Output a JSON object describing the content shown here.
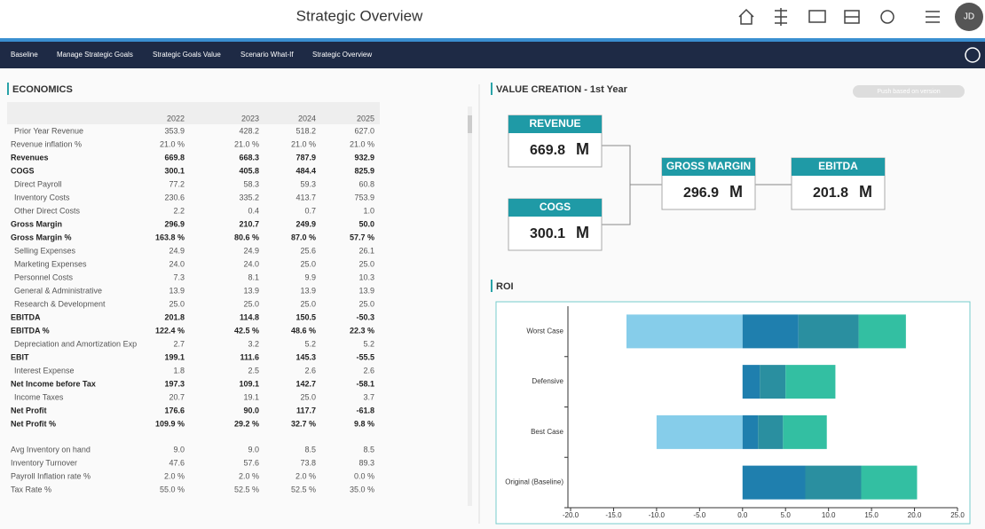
{
  "header": {
    "title": "Strategic Overview",
    "avatar": "JD"
  },
  "nav": {
    "items": [
      "Baseline",
      "Manage Strategic Goals",
      "Strategic Goals Value",
      "Scenario What-If",
      "Strategic Overview"
    ]
  },
  "economics": {
    "title": "ECONOMICS",
    "columns": [
      "2022",
      "2023",
      "2024",
      "2025"
    ],
    "sections": [
      {
        "rows": [
          {
            "label": "Prior Year Revenue",
            "indent": true,
            "values": [
              "353.9",
              "428.2",
              "518.2",
              "627.0"
            ]
          },
          {
            "label": "Revenue inflation %",
            "values": [
              "21.0 %",
              "21.0 %",
              "21.0 %",
              "21.0 %"
            ]
          },
          {
            "label": "Revenues",
            "bold": true,
            "values": [
              "669.8",
              "668.3",
              "787.9",
              "932.9"
            ]
          },
          {
            "label": "COGS",
            "bold": true,
            "values": [
              "300.1",
              "405.8",
              "484.4",
              "825.9"
            ]
          },
          {
            "label": "Direct Payroll",
            "indent": true,
            "values": [
              "77.2",
              "58.3",
              "59.3",
              "60.8"
            ]
          },
          {
            "label": "Inventory Costs",
            "indent": true,
            "values": [
              "230.6",
              "335.2",
              "413.7",
              "753.9"
            ]
          },
          {
            "label": "Other Direct Costs",
            "indent": true,
            "values": [
              "2.2",
              "0.4",
              "0.7",
              "1.0"
            ]
          },
          {
            "label": "Gross Margin",
            "bold": true,
            "values": [
              "296.9",
              "210.7",
              "249.9",
              "50.0"
            ]
          },
          {
            "label": "Gross Margin %",
            "bold": true,
            "values": [
              "163.8 %",
              "80.6 %",
              "87.0 %",
              "57.7 %"
            ]
          },
          {
            "label": "Selling Expenses",
            "indent": true,
            "values": [
              "24.9",
              "24.9",
              "25.6",
              "26.1"
            ]
          },
          {
            "label": "Marketing Expenses",
            "indent": true,
            "values": [
              "24.0",
              "24.0",
              "25.0",
              "25.0"
            ]
          },
          {
            "label": "Personnel Costs",
            "indent": true,
            "values": [
              "7.3",
              "8.1",
              "9.9",
              "10.3"
            ]
          },
          {
            "label": "General & Administrative",
            "indent": true,
            "values": [
              "13.9",
              "13.9",
              "13.9",
              "13.9"
            ]
          },
          {
            "label": "Research & Development",
            "indent": true,
            "values": [
              "25.0",
              "25.0",
              "25.0",
              "25.0"
            ]
          },
          {
            "label": "EBITDA",
            "bold": true,
            "values": [
              "201.8",
              "114.8",
              "150.5",
              "-50.3"
            ]
          },
          {
            "label": "EBITDA %",
            "bold": true,
            "values": [
              "122.4 %",
              "42.5 %",
              "48.6 %",
              "22.3 %"
            ]
          },
          {
            "label": "Depreciation and Amortization Exp",
            "indent": true,
            "values": [
              "2.7",
              "3.2",
              "5.2",
              "5.2"
            ]
          },
          {
            "label": "EBIT",
            "bold": true,
            "values": [
              "199.1",
              "111.6",
              "145.3",
              "-55.5"
            ]
          },
          {
            "label": "Interest Expense",
            "indent": true,
            "values": [
              "1.8",
              "2.5",
              "2.6",
              "2.6"
            ]
          },
          {
            "label": "Net Income before Tax",
            "bold": true,
            "values": [
              "197.3",
              "109.1",
              "142.7",
              "-58.1"
            ]
          },
          {
            "label": "Income Taxes",
            "indent": true,
            "values": [
              "20.7",
              "19.1",
              "25.0",
              "3.7"
            ]
          },
          {
            "label": "Net Profit",
            "bold": true,
            "values": [
              "176.6",
              "90.0",
              "117.7",
              "-61.8"
            ]
          },
          {
            "label": "Net Profit %",
            "bold": true,
            "values": [
              "109.9 %",
              "29.2 %",
              "32.7 %",
              "9.8 %"
            ]
          }
        ]
      },
      {
        "rows": [
          {
            "label": "Avg Inventory on hand",
            "values": [
              "9.0",
              "9.0",
              "8.5",
              "8.5"
            ]
          },
          {
            "label": "Inventory Turnover",
            "values": [
              "47.6",
              "57.6",
              "73.8",
              "89.3"
            ]
          },
          {
            "label": "Payroll Inflation rate %",
            "values": [
              "2.0 %",
              "2.0 %",
              "2.0 %",
              "0.0 %"
            ]
          },
          {
            "label": "Tax Rate %",
            "values": [
              "55.0 %",
              "52.5 %",
              "52.5 %",
              "35.0 %"
            ]
          }
        ]
      }
    ]
  },
  "value_creation": {
    "title": "VALUE CREATION - 1st Year",
    "button": "Push based on version",
    "nodes": [
      {
        "label": "REVENUE",
        "value": "669.8",
        "unit": "M"
      },
      {
        "label": "COGS",
        "value": "300.1",
        "unit": "M"
      },
      {
        "label": "GROSS MARGIN",
        "value": "296.9",
        "unit": "M"
      },
      {
        "label": "EBITDA",
        "value": "201.8",
        "unit": "M"
      }
    ]
  },
  "roi": {
    "title": "ROI"
  },
  "chart_data": {
    "type": "bar",
    "orientation": "horizontal",
    "stacked": true,
    "categories": [
      "Worst Case",
      "Defensive",
      "Best Case",
      "Original (Baseline)"
    ],
    "series": [
      {
        "color": "#86cdea",
        "values": [
          -13.5,
          0,
          -10,
          0
        ]
      },
      {
        "color": "#1f7fae",
        "values": [
          6.5,
          2.0,
          1.8,
          7.3
        ]
      },
      {
        "color": "#2a8fa0",
        "values": [
          7.0,
          3.0,
          2.9,
          6.5
        ]
      },
      {
        "color": "#33bfa2",
        "values": [
          5.5,
          5.8,
          5.1,
          6.5
        ]
      }
    ],
    "xlim": [
      -20,
      25
    ],
    "xticks": [
      {
        "value": -20,
        "label": "-20.0"
      },
      {
        "value": -15,
        "label": "-15.0"
      },
      {
        "value": -10,
        "label": "-10.0"
      },
      {
        "value": -5,
        "label": "-5.0"
      },
      {
        "value": 0,
        "label": "0.0"
      },
      {
        "value": 5,
        "label": "5.0"
      },
      {
        "value": 10,
        "label": "10.0"
      },
      {
        "value": 15,
        "label": "15.0"
      },
      {
        "value": 20,
        "label": "20.0"
      },
      {
        "value": 25,
        "label": "25.0"
      }
    ]
  }
}
